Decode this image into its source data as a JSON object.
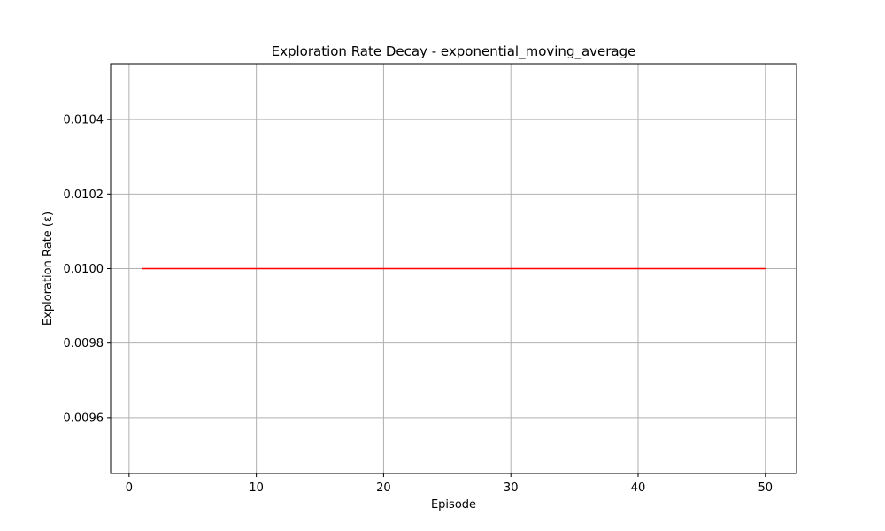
{
  "chart_data": {
    "type": "line",
    "title": "Exploration Rate Decay - exponential_moving_average",
    "xlabel": "Episode",
    "ylabel": "Exploration Rate (ε)",
    "xlim": [
      -1.45,
      52.45
    ],
    "ylim": [
      0.00945,
      0.01055
    ],
    "x_ticks": [
      0,
      10,
      20,
      30,
      40,
      50
    ],
    "x_tick_labels": [
      "0",
      "10",
      "20",
      "30",
      "40",
      "50"
    ],
    "y_ticks": [
      0.0096,
      0.0098,
      0.01,
      0.0102,
      0.0104
    ],
    "y_tick_labels": [
      "0.0096",
      "0.0098",
      "0.0100",
      "0.0102",
      "0.0104"
    ],
    "grid": true,
    "series": [
      {
        "color": "#ff0000",
        "x": [
          1,
          50
        ],
        "y": [
          0.01,
          0.01
        ]
      }
    ]
  }
}
